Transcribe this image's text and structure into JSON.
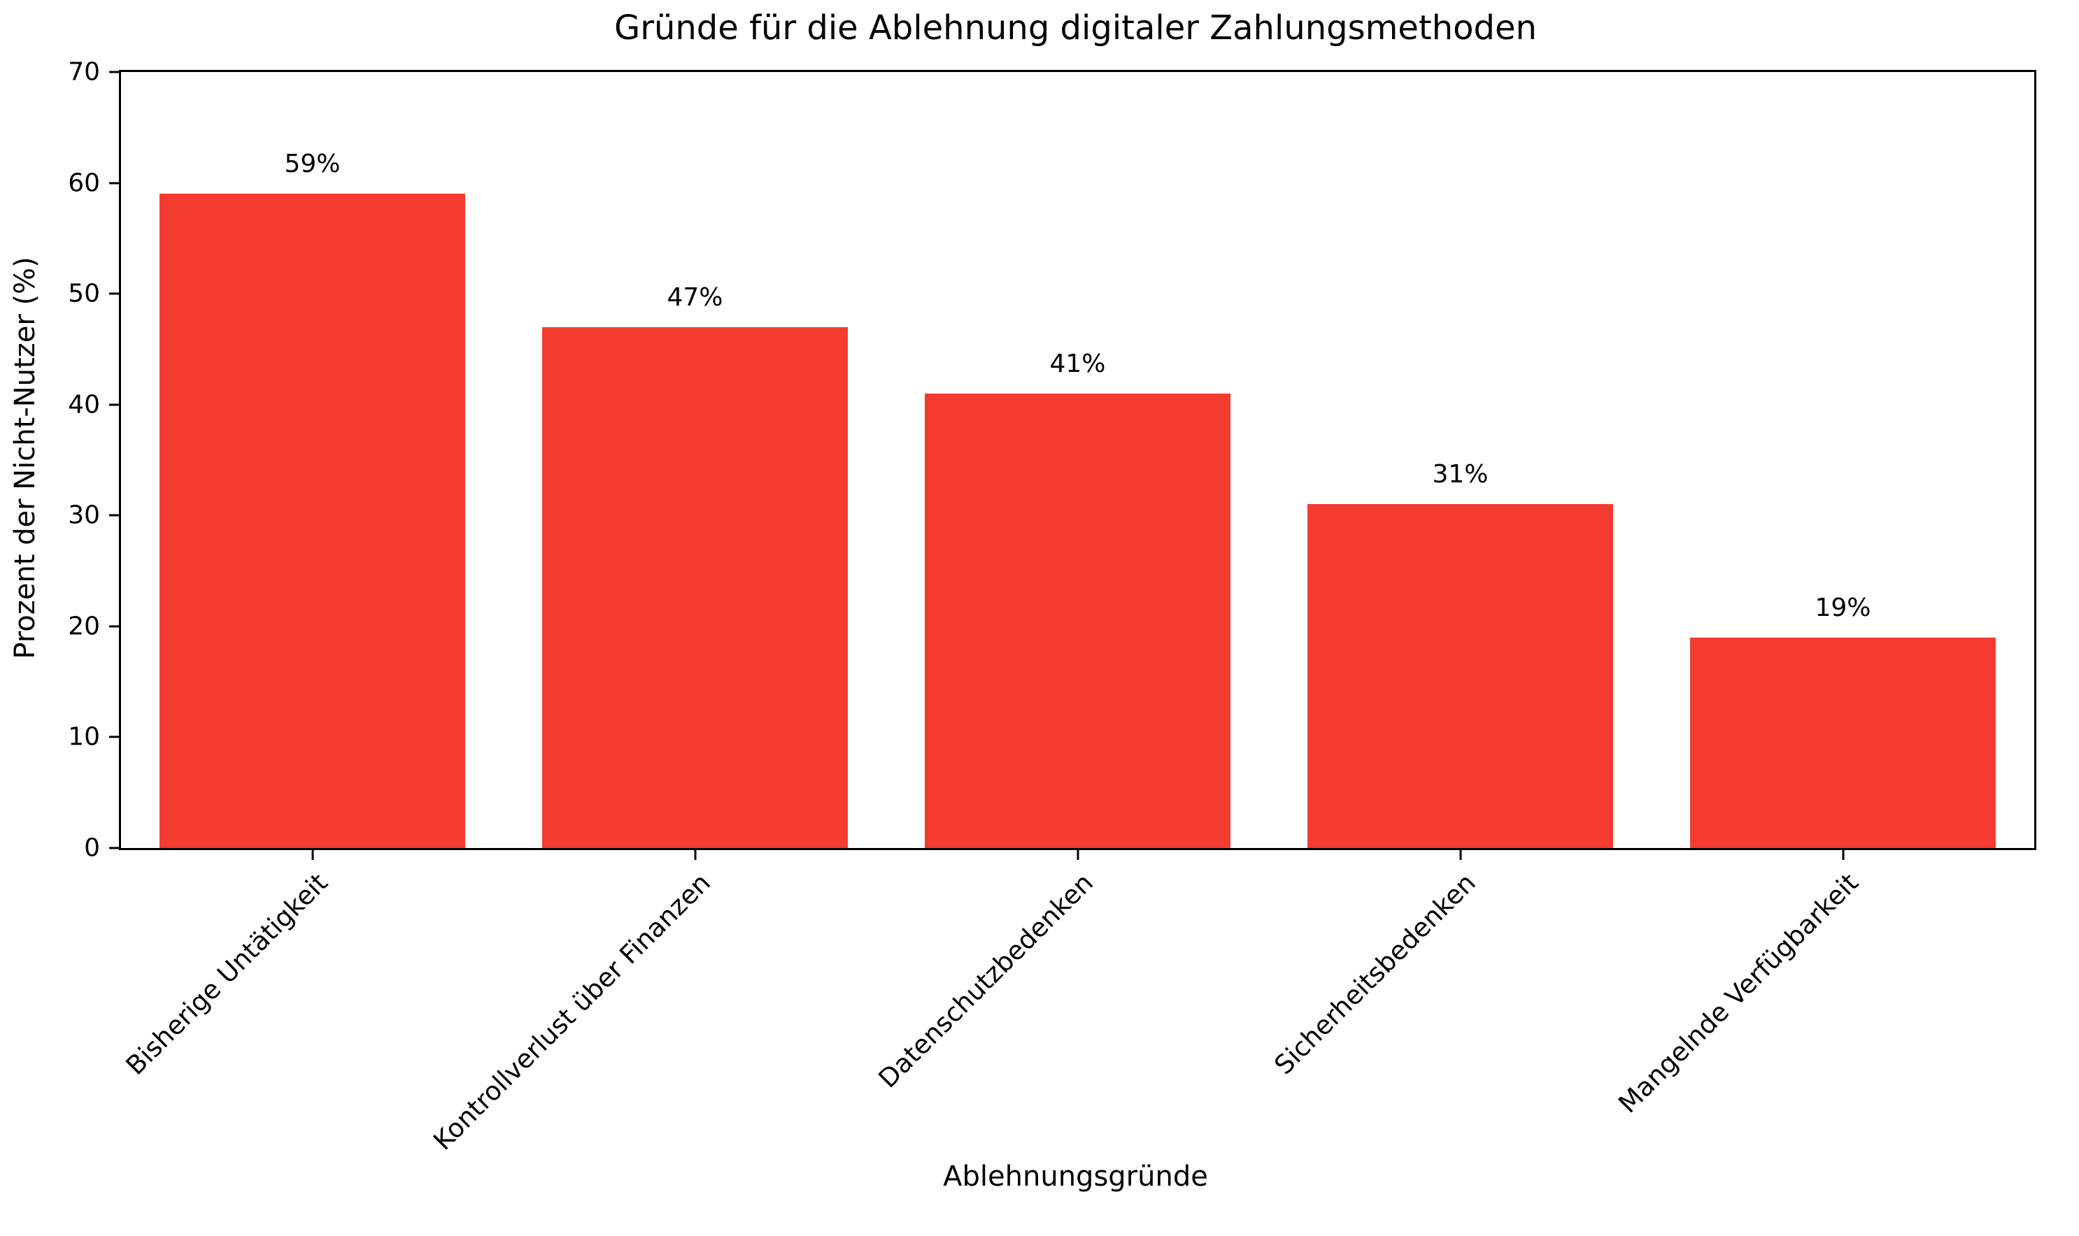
{
  "chart_data": {
    "type": "bar",
    "title": "Gründe für die Ablehnung digitaler Zahlungsmethoden",
    "xlabel": "Ablehnungsgründe",
    "ylabel": "Prozent der Nicht-Nutzer (%)",
    "categories": [
      "Bisherige Untätigkeit",
      "Kontrollverlust über Finanzen",
      "Datenschutzbedenken",
      "Sicherheitsbedenken",
      "Mangelnde Verfügbarkeit"
    ],
    "values": [
      59,
      47,
      41,
      31,
      19
    ],
    "value_labels": [
      "59%",
      "47%",
      "41%",
      "31%",
      "19%"
    ],
    "ylim": [
      0,
      70
    ],
    "yticks": [
      0,
      10,
      20,
      30,
      40,
      50,
      60,
      70
    ],
    "bar_color": "#f43b30",
    "axis_color": "#000000",
    "grid": false,
    "legend_position": "none",
    "bar_width_fraction": 0.8
  }
}
